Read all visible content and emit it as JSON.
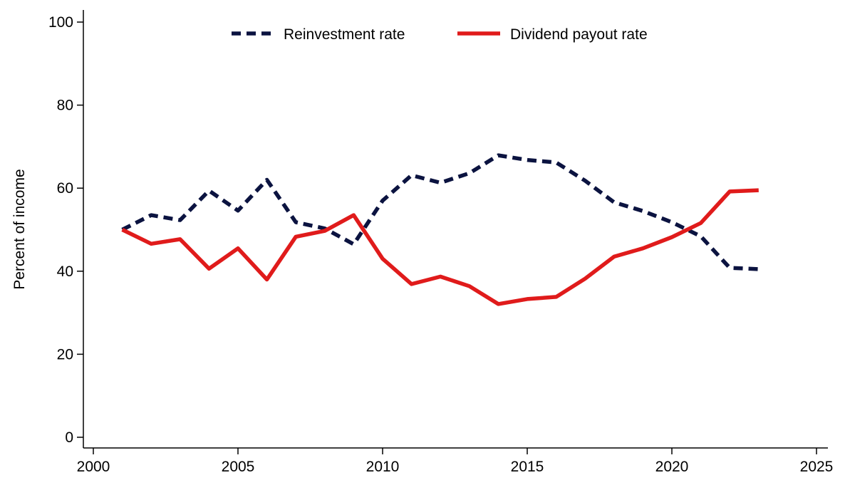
{
  "chart_data": {
    "type": "line",
    "title": "",
    "xlabel": "",
    "ylabel": "Percent of income",
    "xlim": [
      2000,
      2025
    ],
    "ylim": [
      0,
      100
    ],
    "xticks": [
      2000,
      2005,
      2010,
      2015,
      2020,
      2025
    ],
    "yticks": [
      0,
      20,
      40,
      60,
      80,
      100
    ],
    "x": [
      2001,
      2002,
      2003,
      2004,
      2005,
      2006,
      2007,
      2008,
      2009,
      2010,
      2011,
      2012,
      2013,
      2014,
      2015,
      2016,
      2017,
      2018,
      2019,
      2020,
      2021,
      2022,
      2023
    ],
    "series": [
      {
        "name": "Reinvestment rate",
        "color": "#0b1340",
        "dash": "dashed",
        "values": [
          50,
          53.5,
          52.3,
          59.4,
          54.6,
          62.0,
          51.8,
          50.3,
          46.5,
          57.0,
          63.1,
          61.3,
          63.6,
          67.9,
          66.8,
          66.2,
          61.8,
          56.6,
          54.5,
          51.8,
          48.4,
          40.8,
          40.5
        ]
      },
      {
        "name": "Dividend payout rate",
        "color": "#e01b1b",
        "dash": "solid",
        "values": [
          50,
          46.6,
          47.7,
          40.6,
          45.5,
          38.0,
          48.3,
          49.7,
          53.5,
          43.0,
          36.9,
          38.7,
          36.4,
          32.1,
          33.3,
          33.8,
          38.2,
          43.5,
          45.5,
          48.2,
          51.6,
          59.2,
          59.5
        ]
      }
    ],
    "legend_position": "top-center",
    "grid": false
  }
}
